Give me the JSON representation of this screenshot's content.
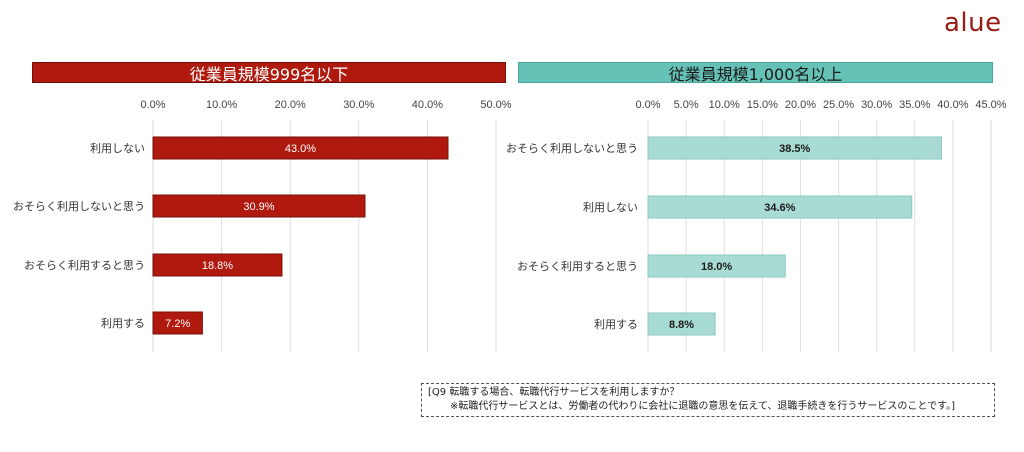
{
  "logo": {
    "text": "alue"
  },
  "colors": {
    "left_bar": "#b0190e",
    "right_bar": "#a8dbd3",
    "left_banner": "#b0190e",
    "right_banner": "#66c2b6"
  },
  "note": {
    "line1": "[Q9 転職する場合、転職代行サービスを利用しますか？",
    "line2": "※転職代行サービスとは、労働者の代わりに会社に退職の意思を伝えて、退職手続きを行うサービスのことです。]"
  },
  "chart_data": [
    {
      "type": "bar",
      "orientation": "horizontal",
      "title": "従業員規模999名以下",
      "categories": [
        "利用しない",
        "おそらく利用しないと思う",
        "おそらく利用すると思う",
        "利用する"
      ],
      "values": [
        43.0,
        30.9,
        18.8,
        7.2
      ],
      "data_labels": [
        "43.0%",
        "30.9%",
        "18.8%",
        "7.2%"
      ],
      "xlim": [
        0,
        50
      ],
      "ticks": [
        "0.0%",
        "10.0%",
        "20.0%",
        "30.0%",
        "40.0%",
        "50.0%"
      ],
      "tick_values": [
        0,
        10,
        20,
        30,
        40,
        50
      ],
      "grid": true,
      "xlabel": "",
      "ylabel": ""
    },
    {
      "type": "bar",
      "orientation": "horizontal",
      "title": "従業員規模1,000名以上",
      "categories": [
        "おそらく利用しないと思う",
        "利用しない",
        "おそらく利用すると思う",
        "利用する"
      ],
      "values": [
        38.5,
        34.6,
        18.0,
        8.8
      ],
      "data_labels": [
        "38.5%",
        "34.6%",
        "18.0%",
        "8.8%"
      ],
      "xlim": [
        0,
        45
      ],
      "ticks": [
        "0.0%",
        "5.0%",
        "10.0%",
        "15.0%",
        "20.0%",
        "25.0%",
        "30.0%",
        "35.0%",
        "40.0%",
        "45.0%"
      ],
      "tick_values": [
        0,
        5,
        10,
        15,
        20,
        25,
        30,
        35,
        40,
        45
      ],
      "grid": true,
      "xlabel": "",
      "ylabel": ""
    }
  ]
}
